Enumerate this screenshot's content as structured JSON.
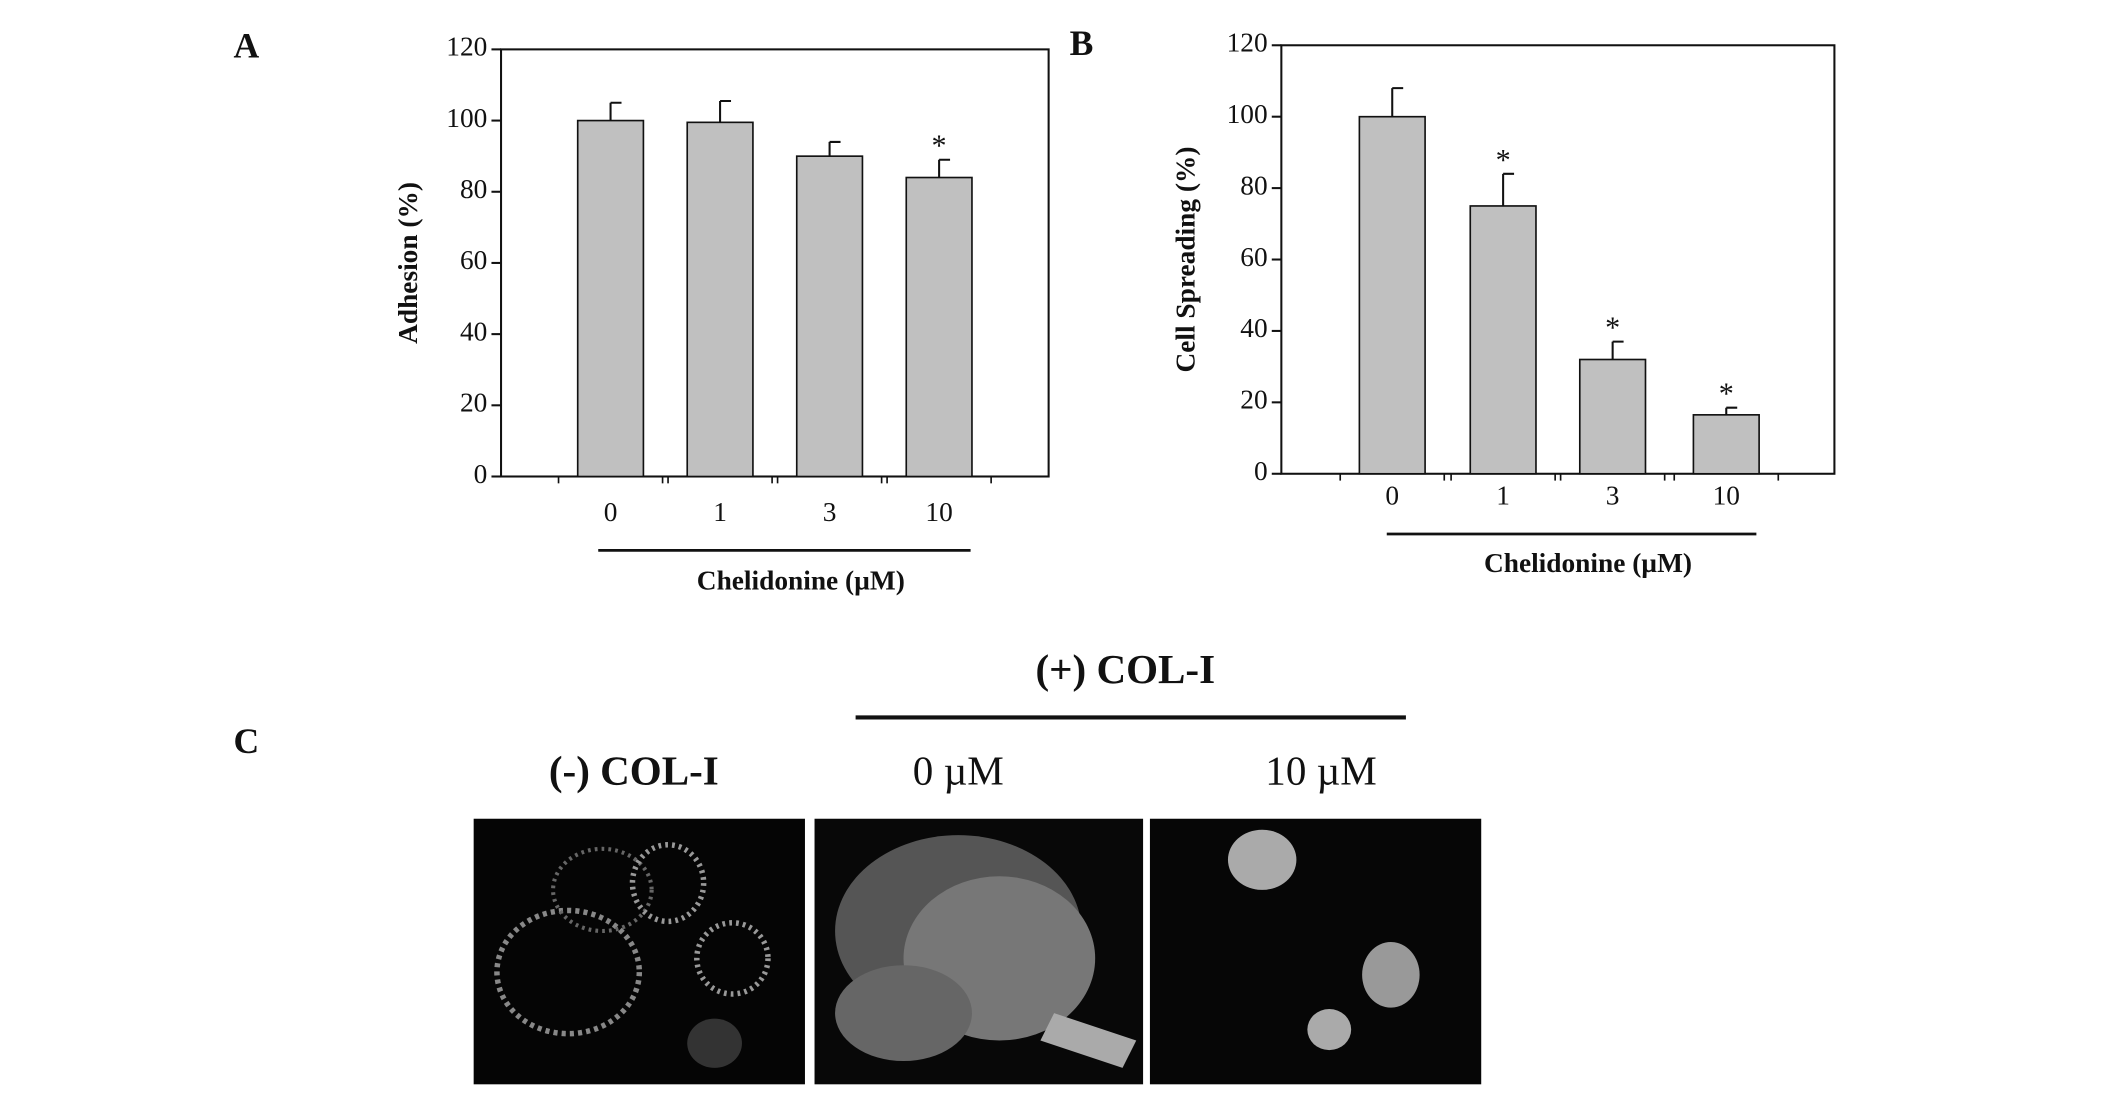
{
  "chart_data": [
    {
      "type": "bar",
      "panel_label": "A",
      "y_label": "Adhesion (%)",
      "x_label": "Chelidonine (µM)",
      "categories": [
        "0",
        "1",
        "3",
        "10"
      ],
      "values": [
        100,
        99.5,
        90,
        84
      ],
      "errors": [
        5,
        6,
        4,
        5
      ],
      "markers": [
        null,
        null,
        null,
        "*"
      ],
      "color": "#c0c0c0",
      "ylim": [
        0,
        120
      ],
      "yticks": [
        0,
        20,
        40,
        60,
        80,
        100,
        120
      ]
    },
    {
      "type": "bar",
      "panel_label": "B",
      "y_label": "Cell Spreading (%)",
      "x_label": "Chelidonine (µM)",
      "categories": [
        "0",
        "1",
        "3",
        "10"
      ],
      "values": [
        100,
        75,
        32,
        16.5
      ],
      "errors": [
        8,
        9,
        5,
        2
      ],
      "markers": [
        null,
        "*",
        "*",
        "*"
      ],
      "color": "#c0c0c0",
      "ylim": [
        0,
        120
      ],
      "yticks": [
        0,
        20,
        40,
        60,
        80,
        100,
        120
      ]
    }
  ],
  "panel_c": {
    "label": "C",
    "group_label": "(+) COL-I",
    "images": [
      "(-) COL-I",
      "0 µM",
      "10 µM"
    ]
  }
}
